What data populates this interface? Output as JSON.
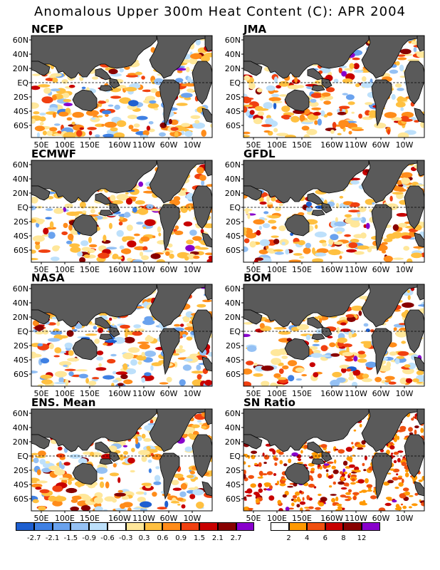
{
  "title": "Anomalous Upper 300m Heat Content (C): APR 2004",
  "chart_data": [
    {
      "type": "heatmap",
      "title": "NCEP"
    },
    {
      "type": "heatmap",
      "title": "JMA"
    },
    {
      "type": "heatmap",
      "title": "ECMWF"
    },
    {
      "type": "heatmap",
      "title": "GFDL"
    },
    {
      "type": "heatmap",
      "title": "NASA"
    },
    {
      "type": "heatmap",
      "title": "BOM"
    },
    {
      "type": "heatmap",
      "title": "ENS. Mean"
    },
    {
      "type": "heatmap",
      "title": "SN Ratio"
    }
  ],
  "axes": {
    "lat_labels": [
      "60N",
      "40N",
      "20N",
      "EQ",
      "20S",
      "40S",
      "60S"
    ],
    "lon_labels": [
      "50E",
      "100E",
      "150E",
      "160W",
      "110W",
      "60W",
      "10W"
    ]
  },
  "anomaly_colorbar": {
    "colors": [
      "#1e5fd0",
      "#3f80e3",
      "#6aa2ee",
      "#95c1f4",
      "#bde0fb",
      "#ffffff",
      "#ffe79a",
      "#ffc040",
      "#ff8c1a",
      "#f04010",
      "#c80000",
      "#880000",
      "#8800cc"
    ],
    "labels": [
      "-2.7",
      "-2.1",
      "-1.5",
      "-0.9",
      "-0.6",
      "-0.3",
      "0.3",
      "0.6",
      "0.9",
      "1.5",
      "2.1",
      "2.7"
    ]
  },
  "snr_colorbar": {
    "colors": [
      "#ffffff",
      "#ff9900",
      "#f05010",
      "#c80000",
      "#880000",
      "#8800cc"
    ],
    "labels": [
      "2",
      "4",
      "6",
      "8",
      "12"
    ]
  },
  "colors": {
    "land": "#5a5a5a",
    "coast": "#000000"
  }
}
